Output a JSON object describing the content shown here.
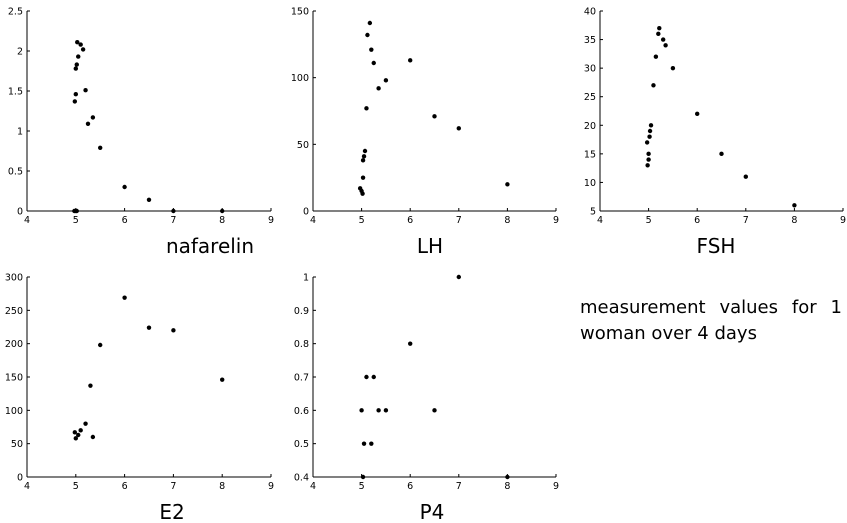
{
  "chart_data": [
    {
      "type": "scatter",
      "label": "nafarelin",
      "xlim": [
        4,
        9
      ],
      "ylim": [
        0,
        2.5
      ],
      "xticks": [
        "4",
        "5",
        "6",
        "7",
        "8",
        "9"
      ],
      "yticks": [
        "0",
        "0.5",
        "1",
        "1.5",
        "2",
        "2.5"
      ],
      "points": [
        [
          4.97,
          0
        ],
        [
          5.0,
          0
        ],
        [
          5.02,
          0
        ],
        [
          4.98,
          1.37
        ],
        [
          5.0,
          1.46
        ],
        [
          5.0,
          1.78
        ],
        [
          5.02,
          1.83
        ],
        [
          5.05,
          1.93
        ],
        [
          5.03,
          2.11
        ],
        [
          5.1,
          2.08
        ],
        [
          5.15,
          2.02
        ],
        [
          5.2,
          1.51
        ],
        [
          5.25,
          1.09
        ],
        [
          5.35,
          1.17
        ],
        [
          5.5,
          0.79
        ],
        [
          6.0,
          0.3
        ],
        [
          6.5,
          0.14
        ],
        [
          7.0,
          0
        ],
        [
          8.0,
          0
        ]
      ]
    },
    {
      "type": "scatter",
      "label": "LH",
      "xlim": [
        4,
        9
      ],
      "ylim": [
        0,
        150
      ],
      "xticks": [
        "4",
        "5",
        "6",
        "7",
        "8",
        "9"
      ],
      "yticks": [
        "0",
        "50",
        "100",
        "150"
      ],
      "points": [
        [
          4.97,
          17
        ],
        [
          5.0,
          15
        ],
        [
          5.02,
          13
        ],
        [
          5.03,
          25
        ],
        [
          5.03,
          38
        ],
        [
          5.05,
          41
        ],
        [
          5.07,
          45
        ],
        [
          5.1,
          77
        ],
        [
          5.12,
          132
        ],
        [
          5.17,
          141
        ],
        [
          5.2,
          121
        ],
        [
          5.25,
          111
        ],
        [
          5.35,
          92
        ],
        [
          5.5,
          98
        ],
        [
          6.0,
          113
        ],
        [
          6.5,
          71
        ],
        [
          7.0,
          62
        ],
        [
          8.0,
          20
        ]
      ]
    },
    {
      "type": "scatter",
      "label": "FSH",
      "xlim": [
        4,
        9
      ],
      "ylim": [
        5,
        40
      ],
      "xticks": [
        "4",
        "5",
        "6",
        "7",
        "8",
        "9"
      ],
      "yticks": [
        "5",
        "10",
        "15",
        "20",
        "25",
        "30",
        "35",
        "40"
      ],
      "points": [
        [
          4.97,
          17
        ],
        [
          4.98,
          13
        ],
        [
          5.0,
          14
        ],
        [
          5.0,
          15
        ],
        [
          5.02,
          18
        ],
        [
          5.03,
          19
        ],
        [
          5.05,
          20
        ],
        [
          5.1,
          27
        ],
        [
          5.15,
          32
        ],
        [
          5.2,
          36
        ],
        [
          5.22,
          37
        ],
        [
          5.3,
          35
        ],
        [
          5.35,
          34
        ],
        [
          5.5,
          30
        ],
        [
          6.0,
          22
        ],
        [
          6.5,
          15
        ],
        [
          7.0,
          11
        ],
        [
          8.0,
          6
        ]
      ]
    },
    {
      "type": "scatter",
      "label": "E2",
      "xlim": [
        4,
        9
      ],
      "ylim": [
        0,
        300
      ],
      "xticks": [
        "4",
        "5",
        "6",
        "7",
        "8",
        "9"
      ],
      "yticks": [
        "0",
        "50",
        "100",
        "150",
        "200",
        "250",
        "300"
      ],
      "points": [
        [
          4.98,
          67
        ],
        [
          5.0,
          58
        ],
        [
          5.05,
          63
        ],
        [
          5.1,
          70
        ],
        [
          5.2,
          80
        ],
        [
          5.3,
          137
        ],
        [
          5.35,
          60
        ],
        [
          5.5,
          198
        ],
        [
          6.0,
          269
        ],
        [
          6.5,
          224
        ],
        [
          7.0,
          220
        ],
        [
          8.0,
          146
        ]
      ]
    },
    {
      "type": "scatter",
      "label": "P4",
      "xlim": [
        4,
        9
      ],
      "ylim": [
        0.4,
        1
      ],
      "xticks": [
        "4",
        "5",
        "6",
        "7",
        "8",
        "9"
      ],
      "yticks": [
        "0.4",
        "0.5",
        "0.6",
        "0.7",
        "0.8",
        "0.9",
        "1"
      ],
      "points": [
        [
          5.0,
          0.6
        ],
        [
          5.03,
          0.4
        ],
        [
          5.05,
          0.5
        ],
        [
          5.1,
          0.7
        ],
        [
          5.2,
          0.5
        ],
        [
          5.25,
          0.7
        ],
        [
          5.35,
          0.6
        ],
        [
          5.5,
          0.6
        ],
        [
          6.0,
          0.8
        ],
        [
          6.5,
          0.6
        ],
        [
          7.0,
          1.0
        ],
        [
          8.0,
          0.4
        ]
      ]
    }
  ],
  "note": "measurement values for 1 woman over 4 days"
}
